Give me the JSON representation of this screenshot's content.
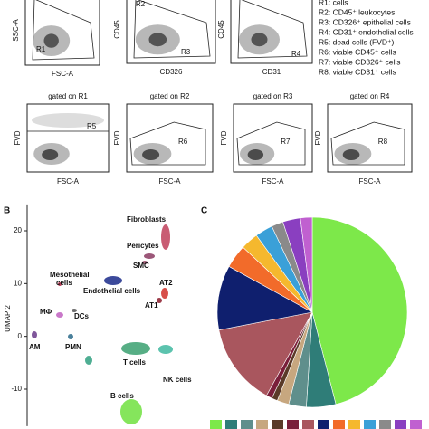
{
  "panel_a": {
    "top_plots": [
      {
        "y_label": "SSC-A",
        "x_label": "FSC-A",
        "regions": [
          "R1"
        ]
      },
      {
        "y_label": "CD45",
        "x_label": "CD326",
        "regions": [
          "R2",
          "R3"
        ]
      },
      {
        "y_label": "CD45",
        "x_label": "CD31",
        "regions": [
          "R4"
        ]
      }
    ],
    "legend": [
      "R1: cells",
      "R2: CD45⁺ leukocytes",
      "R3: CD326⁺ epithelial cells",
      "R4: CD31⁺ endothelial cells",
      "R5: dead cells (FVD⁺)",
      "R6: viable CD45⁺ cells",
      "R7: viable CD326⁺ cells",
      "R8: viable CD31⁺ cells"
    ],
    "gated_plots": [
      {
        "title": "gated on R1",
        "y_label": "FVD",
        "x_label": "FSC-A",
        "region": "R5"
      },
      {
        "title": "gated on R2",
        "y_label": "FVD",
        "x_label": "FSC-A",
        "region": "R6"
      },
      {
        "title": "gated on R3",
        "y_label": "FVD",
        "x_label": "FSC-A",
        "region": "R7"
      },
      {
        "title": "gated on R4",
        "y_label": "FVD",
        "x_label": "FSC-A",
        "region": "R8"
      }
    ]
  },
  "panel_b": {
    "label": "B",
    "y_axis_label": "UMAP 2",
    "ylim": [
      -17,
      25
    ],
    "yticks": [
      20,
      10,
      0,
      -10
    ],
    "clusters": [
      {
        "label": "Fibroblasts"
      },
      {
        "label": "Pericytes"
      },
      {
        "label": "SMC"
      },
      {
        "label": "Mesothelial"
      },
      {
        "label": "cells"
      },
      {
        "label": "Endothelial cells"
      },
      {
        "label": "AT2"
      },
      {
        "label": "AT1"
      },
      {
        "label": "MΦ"
      },
      {
        "label": "DCs"
      },
      {
        "label": "AM"
      },
      {
        "label": "PMN"
      },
      {
        "label": "T cells"
      },
      {
        "label": "NK cells"
      },
      {
        "label": "B cells"
      }
    ]
  },
  "chart_data": {
    "type": "pie",
    "panel_label": "C",
    "values": [
      46,
      5,
      3,
      2,
      1,
      1,
      14,
      11,
      4,
      3,
      3,
      2,
      3,
      2
    ],
    "colors": [
      "#7de84a",
      "#2f7d78",
      "#5f8f8c",
      "#c7a77f",
      "#5a3a28",
      "#7a1f3a",
      "#a9565e",
      "#0f1f6e",
      "#f26b2a",
      "#f5b82e",
      "#3aa0d8",
      "#8a8a8a",
      "#8a3fc0",
      "#c060d0"
    ]
  }
}
